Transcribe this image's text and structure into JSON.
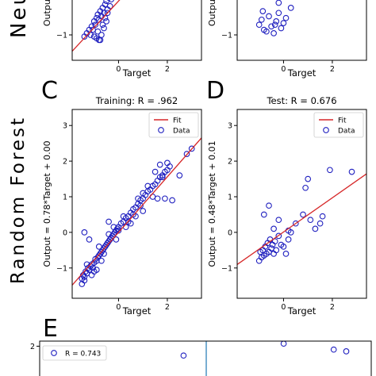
{
  "row_labels": {
    "neural": "Neu",
    "forest": "Random Forest"
  },
  "panel_letters": {
    "c": "C",
    "d": "D",
    "e": "E"
  },
  "colors": {
    "fit": "#d62728",
    "data": "#1f1fbf",
    "divider": "#1f77b4"
  },
  "chart_data": [
    {
      "id": "A",
      "type": "scatter",
      "title": "",
      "xlabel": "Target",
      "ylabel": "Output",
      "xlim": [
        -1.9,
        3.4
      ],
      "ylim": [
        -1.75,
        0.5
      ],
      "xticks": [
        0,
        2
      ],
      "yticks": [
        -1
      ],
      "fit": {
        "slope": 0.78,
        "intercept": 0.0
      },
      "points": [
        [
          -1.4,
          -1.05
        ],
        [
          -1.2,
          -0.85
        ],
        [
          -1.1,
          -0.75
        ],
        [
          -1.0,
          -0.6
        ],
        [
          -0.95,
          -0.7
        ],
        [
          -0.9,
          -0.5
        ],
        [
          -0.85,
          -0.4
        ],
        [
          -0.8,
          -0.55
        ],
        [
          -0.75,
          -0.3
        ],
        [
          -0.7,
          -0.45
        ],
        [
          -0.65,
          -0.2
        ],
        [
          -0.6,
          -0.35
        ],
        [
          -0.55,
          -0.1
        ],
        [
          -0.5,
          0.0
        ],
        [
          -0.45,
          -0.25
        ],
        [
          -0.4,
          0.1
        ],
        [
          -0.35,
          0.2
        ],
        [
          -0.3,
          0.05
        ],
        [
          -1.0,
          -1.05
        ],
        [
          -0.9,
          -1.1
        ],
        [
          -0.8,
          -1.15
        ],
        [
          -0.7,
          -1.0
        ],
        [
          -0.6,
          -0.8
        ],
        [
          -0.5,
          -0.6
        ],
        [
          -1.3,
          -0.95
        ],
        [
          -1.15,
          -1.0
        ],
        [
          -0.85,
          -0.9
        ],
        [
          -0.65,
          -0.7
        ],
        [
          -0.55,
          -0.5
        ],
        [
          -0.45,
          -0.35
        ],
        [
          -0.35,
          -0.15
        ],
        [
          -0.25,
          0.15
        ],
        [
          -0.2,
          0.3
        ],
        [
          -0.75,
          -1.15
        ],
        [
          -1.05,
          -0.85
        ]
      ]
    },
    {
      "id": "B",
      "type": "scatter",
      "title": "",
      "xlabel": "Target",
      "ylabel": "Output",
      "xlim": [
        -1.9,
        3.4
      ],
      "ylim": [
        -1.75,
        0.5
      ],
      "xticks": [
        0,
        2
      ],
      "yticks": [
        -1
      ],
      "points": [
        [
          -1.0,
          -0.7
        ],
        [
          -0.9,
          -0.55
        ],
        [
          -0.8,
          -0.85
        ],
        [
          -0.7,
          -0.9
        ],
        [
          -0.6,
          -0.45
        ],
        [
          -0.5,
          -0.75
        ],
        [
          -0.4,
          -0.95
        ],
        [
          -0.3,
          -0.6
        ],
        [
          -0.2,
          -0.35
        ],
        [
          -0.1,
          -0.8
        ],
        [
          0.1,
          -0.5
        ],
        [
          0.3,
          -0.2
        ],
        [
          -0.7,
          0.3
        ],
        [
          -0.5,
          0.15
        ],
        [
          -0.2,
          -0.05
        ],
        [
          0.6,
          0.25
        ],
        [
          1.8,
          0.35
        ],
        [
          -0.85,
          -0.3
        ],
        [
          -0.35,
          -0.7
        ],
        [
          0.0,
          -0.65
        ]
      ]
    },
    {
      "id": "C",
      "type": "scatter",
      "title": "Training: R = .962",
      "xlabel": "Target",
      "ylabel": "Output = 0.78*Target + 0.00",
      "legend": [
        "Fit",
        "Data"
      ],
      "legend_position": "top-right",
      "xlim": [
        -1.9,
        3.4
      ],
      "ylim": [
        -1.85,
        3.45
      ],
      "xticks": [
        0,
        2
      ],
      "yticks": [
        -1,
        0,
        1,
        2,
        3
      ],
      "fit": {
        "slope": 0.78,
        "intercept": 0.0
      },
      "points": [
        [
          -1.5,
          -1.3
        ],
        [
          -1.45,
          -1.2
        ],
        [
          -1.4,
          -1.25
        ],
        [
          -1.35,
          -1.1
        ],
        [
          -1.3,
          -1.15
        ],
        [
          -1.25,
          -1.0
        ],
        [
          -1.2,
          -1.05
        ],
        [
          -1.15,
          -0.95
        ],
        [
          -1.1,
          -0.9
        ],
        [
          -1.05,
          -1.0
        ],
        [
          -1.0,
          -0.85
        ],
        [
          -0.95,
          -0.75
        ],
        [
          -0.9,
          -0.8
        ],
        [
          -0.85,
          -0.7
        ],
        [
          -0.8,
          -0.65
        ],
        [
          -0.75,
          -0.6
        ],
        [
          -0.7,
          -0.55
        ],
        [
          -0.65,
          -0.5
        ],
        [
          -0.6,
          -0.45
        ],
        [
          -0.55,
          -0.4
        ],
        [
          -0.5,
          -0.35
        ],
        [
          -0.45,
          -0.3
        ],
        [
          -0.4,
          -0.25
        ],
        [
          -0.35,
          -0.2
        ],
        [
          -0.3,
          -0.15
        ],
        [
          -0.25,
          -0.1
        ],
        [
          -0.2,
          -0.05
        ],
        [
          -0.15,
          0.0
        ],
        [
          -0.1,
          0.05
        ],
        [
          -0.05,
          0.1
        ],
        [
          0.0,
          0.15
        ],
        [
          0.1,
          0.25
        ],
        [
          0.2,
          0.3
        ],
        [
          0.3,
          0.4
        ],
        [
          0.4,
          0.45
        ],
        [
          0.5,
          0.55
        ],
        [
          0.6,
          0.65
        ],
        [
          0.7,
          0.7
        ],
        [
          0.8,
          0.8
        ],
        [
          0.9,
          0.9
        ],
        [
          1.0,
          0.95
        ],
        [
          1.1,
          1.05
        ],
        [
          1.2,
          1.15
        ],
        [
          1.3,
          1.2
        ],
        [
          1.4,
          1.3
        ],
        [
          1.5,
          1.35
        ],
        [
          1.6,
          1.45
        ],
        [
          1.7,
          1.55
        ],
        [
          1.8,
          1.6
        ],
        [
          1.9,
          1.7
        ],
        [
          2.0,
          1.75
        ],
        [
          2.0,
          1.95
        ],
        [
          1.8,
          1.55
        ],
        [
          -1.3,
          -0.9
        ],
        [
          -1.0,
          -1.1
        ],
        [
          -0.8,
          -0.4
        ],
        [
          -0.6,
          -0.6
        ],
        [
          -0.4,
          -0.05
        ],
        [
          -0.2,
          0.15
        ],
        [
          0.0,
          0.05
        ],
        [
          0.2,
          0.45
        ],
        [
          0.4,
          0.3
        ],
        [
          0.6,
          0.5
        ],
        [
          0.8,
          0.95
        ],
        [
          1.0,
          1.1
        ],
        [
          1.2,
          1.3
        ],
        [
          1.4,
          1.0
        ],
        [
          1.6,
          0.95
        ],
        [
          -1.4,
          0.0
        ],
        [
          -1.2,
          -0.2
        ],
        [
          -0.4,
          0.3
        ],
        [
          1.9,
          0.95
        ],
        [
          2.2,
          0.9
        ],
        [
          2.5,
          1.6
        ],
        [
          2.8,
          2.2
        ],
        [
          3.0,
          2.35
        ],
        [
          1.0,
          0.6
        ],
        [
          0.5,
          0.25
        ],
        [
          -0.1,
          -0.2
        ],
        [
          -0.9,
          -1.05
        ],
        [
          -0.7,
          -0.8
        ],
        [
          -1.1,
          -1.2
        ],
        [
          -1.5,
          -1.45
        ],
        [
          -1.4,
          -1.35
        ],
        [
          1.5,
          1.7
        ],
        [
          1.7,
          1.9
        ],
        [
          2.1,
          1.85
        ],
        [
          0.7,
          0.45
        ],
        [
          0.9,
          0.75
        ],
        [
          0.3,
          0.15
        ]
      ]
    },
    {
      "id": "D",
      "type": "scatter",
      "title": "Test: R = 0.676",
      "xlabel": "Target",
      "ylabel": "Output = 0.48*Target + 0.01",
      "legend": [
        "Fit",
        "Data"
      ],
      "legend_position": "top-right",
      "xlim": [
        -1.9,
        3.4
      ],
      "ylim": [
        -1.85,
        3.45
      ],
      "xticks": [
        0,
        2
      ],
      "yticks": [
        -1,
        0,
        1,
        2,
        3
      ],
      "fit": {
        "slope": 0.48,
        "intercept": 0.01
      },
      "points": [
        [
          -1.0,
          -0.8
        ],
        [
          -0.95,
          -0.55
        ],
        [
          -0.9,
          -0.7
        ],
        [
          -0.85,
          -0.5
        ],
        [
          -0.8,
          -0.65
        ],
        [
          -0.75,
          -0.4
        ],
        [
          -0.7,
          -0.6
        ],
        [
          -0.65,
          -0.3
        ],
        [
          -0.6,
          -0.55
        ],
        [
          -0.55,
          -0.2
        ],
        [
          -0.5,
          -0.45
        ],
        [
          -0.45,
          -0.35
        ],
        [
          -0.4,
          -0.6
        ],
        [
          -0.35,
          -0.25
        ],
        [
          -0.3,
          -0.5
        ],
        [
          -0.2,
          -0.1
        ],
        [
          -0.1,
          -0.35
        ],
        [
          0.0,
          -0.4
        ],
        [
          0.1,
          -0.6
        ],
        [
          0.2,
          -0.2
        ],
        [
          0.3,
          0.0
        ],
        [
          -0.8,
          0.5
        ],
        [
          -0.6,
          0.75
        ],
        [
          -0.2,
          0.35
        ],
        [
          0.2,
          0.05
        ],
        [
          0.5,
          0.25
        ],
        [
          0.9,
          1.25
        ],
        [
          1.0,
          1.5
        ],
        [
          1.1,
          0.35
        ],
        [
          1.3,
          0.1
        ],
        [
          1.5,
          0.25
        ],
        [
          1.6,
          0.45
        ],
        [
          1.9,
          1.75
        ],
        [
          2.8,
          1.7
        ],
        [
          -0.4,
          0.1
        ],
        [
          0.8,
          0.5
        ]
      ]
    },
    {
      "id": "E",
      "type": "scatter",
      "title": "",
      "legend": [
        "R = 0.743"
      ],
      "legend_position": "top-left",
      "ylim": [
        -0.5,
        2.3
      ],
      "yticks": [
        2
      ],
      "points": [
        [
          0.4,
          1.45
        ],
        [
          2.0,
          2.15
        ],
        [
          2.8,
          1.8
        ],
        [
          3.0,
          1.7
        ]
      ]
    }
  ]
}
